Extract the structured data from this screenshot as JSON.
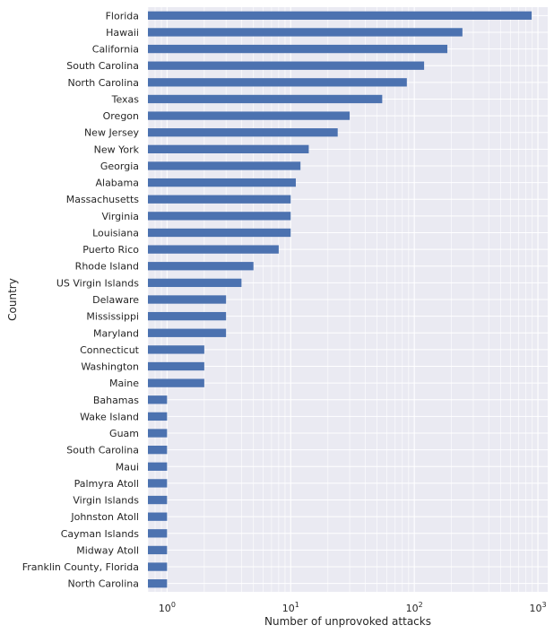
{
  "chart_data": {
    "type": "bar",
    "orientation": "horizontal",
    "x_scale": "log",
    "xlabel": "Number of unprovoked attacks",
    "ylabel": "Country",
    "xlim": [
      0.7,
      1200
    ],
    "x_ticks": [
      {
        "value": 1,
        "base": "10",
        "exp": "0"
      },
      {
        "value": 10,
        "base": "10",
        "exp": "1"
      },
      {
        "value": 100,
        "base": "10",
        "exp": "2"
      },
      {
        "value": 1000,
        "base": "10",
        "exp": "3"
      }
    ],
    "grid": true,
    "bar_color": "#4c72b0",
    "background_color": "#eaeaf2",
    "categories": [
      "Florida",
      "Hawaii",
      "California",
      "South Carolina",
      "North Carolina",
      "Texas",
      "Oregon",
      "New Jersey",
      "New York",
      "Georgia",
      "Alabama",
      "Massachusetts",
      "Virginia",
      "Louisiana",
      "Puerto Rico",
      "Rhode Island",
      "US Virgin Islands",
      "Delaware",
      "Mississippi",
      "Maryland",
      "Connecticut",
      "Washington",
      "Maine",
      "Bahamas",
      "Wake Island",
      "Guam",
      "South Carolina ",
      "Maui",
      "Palmyra Atoll",
      "Virgin Islands",
      "Johnston Atoll",
      "Cayman Islands",
      "Midway Atoll",
      "Franklin County, Florida",
      "North Carolina "
    ],
    "values": [
      890,
      245,
      185,
      120,
      87,
      55,
      30,
      24,
      14,
      12,
      11,
      10,
      10,
      10,
      8,
      5,
      4,
      3,
      3,
      3,
      2,
      2,
      2,
      1,
      1,
      1,
      1,
      1,
      1,
      1,
      1,
      1,
      1,
      1,
      1
    ]
  }
}
